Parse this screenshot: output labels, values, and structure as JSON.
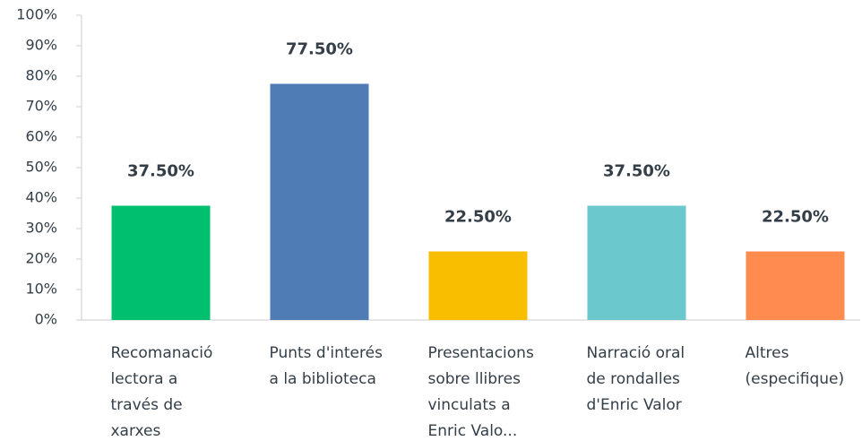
{
  "chart_data": {
    "type": "bar",
    "categories": [
      "Recomanació lectora a través de xarxes",
      "Punts d'interés a la biblioteca",
      "Presentacions sobre llibres vinculats a Enric Valo...",
      "Narració oral de rondalles d'Enric Valor",
      "Altres (especifique)"
    ],
    "values": [
      37.5,
      77.5,
      22.5,
      37.5,
      22.5
    ],
    "value_labels": [
      "37.50%",
      "77.50%",
      "22.50%",
      "37.50%",
      "22.50%"
    ],
    "colors": [
      "#00bf6f",
      "#507cb6",
      "#f9be00",
      "#6bc8cd",
      "#ff8b4f"
    ],
    "ylim": [
      0,
      100
    ],
    "yticks": [
      {
        "value": 0,
        "label": "0%"
      },
      {
        "value": 10,
        "label": "10%"
      },
      {
        "value": 20,
        "label": "20%"
      },
      {
        "value": 30,
        "label": "30%"
      },
      {
        "value": 40,
        "label": "40%"
      },
      {
        "value": 50,
        "label": "50%"
      },
      {
        "value": 60,
        "label": "60%"
      },
      {
        "value": 70,
        "label": "70%"
      },
      {
        "value": 80,
        "label": "80%"
      },
      {
        "value": 90,
        "label": "90%"
      },
      {
        "value": 100,
        "label": "100%"
      }
    ],
    "grid": false
  }
}
